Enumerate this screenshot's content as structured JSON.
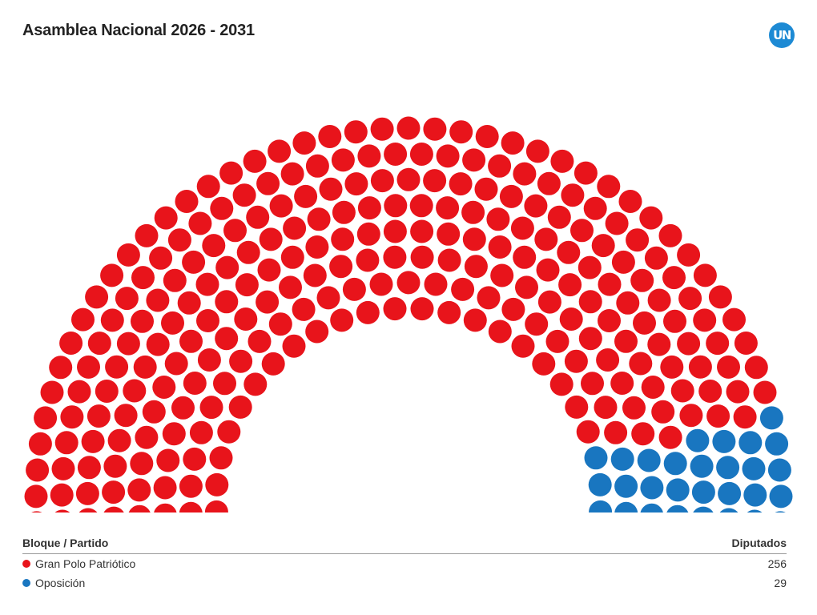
{
  "title": "Asamblea Nacional 2026 - 2031",
  "logo": {
    "text": "UN",
    "color": "#1d8ad4",
    "icon": "un-logo-icon"
  },
  "legend": {
    "header_left": "Bloque / Partido",
    "header_right": "Diputados"
  },
  "chart_data": {
    "type": "parliament",
    "title": "Asamblea Nacional 2026 - 2031",
    "total_seats": 285,
    "series": [
      {
        "name": "Gran Polo Patriótico",
        "value": 256,
        "color": "#e8141b"
      },
      {
        "name": "Oposición",
        "value": 29,
        "color": "#1976c0"
      }
    ]
  }
}
